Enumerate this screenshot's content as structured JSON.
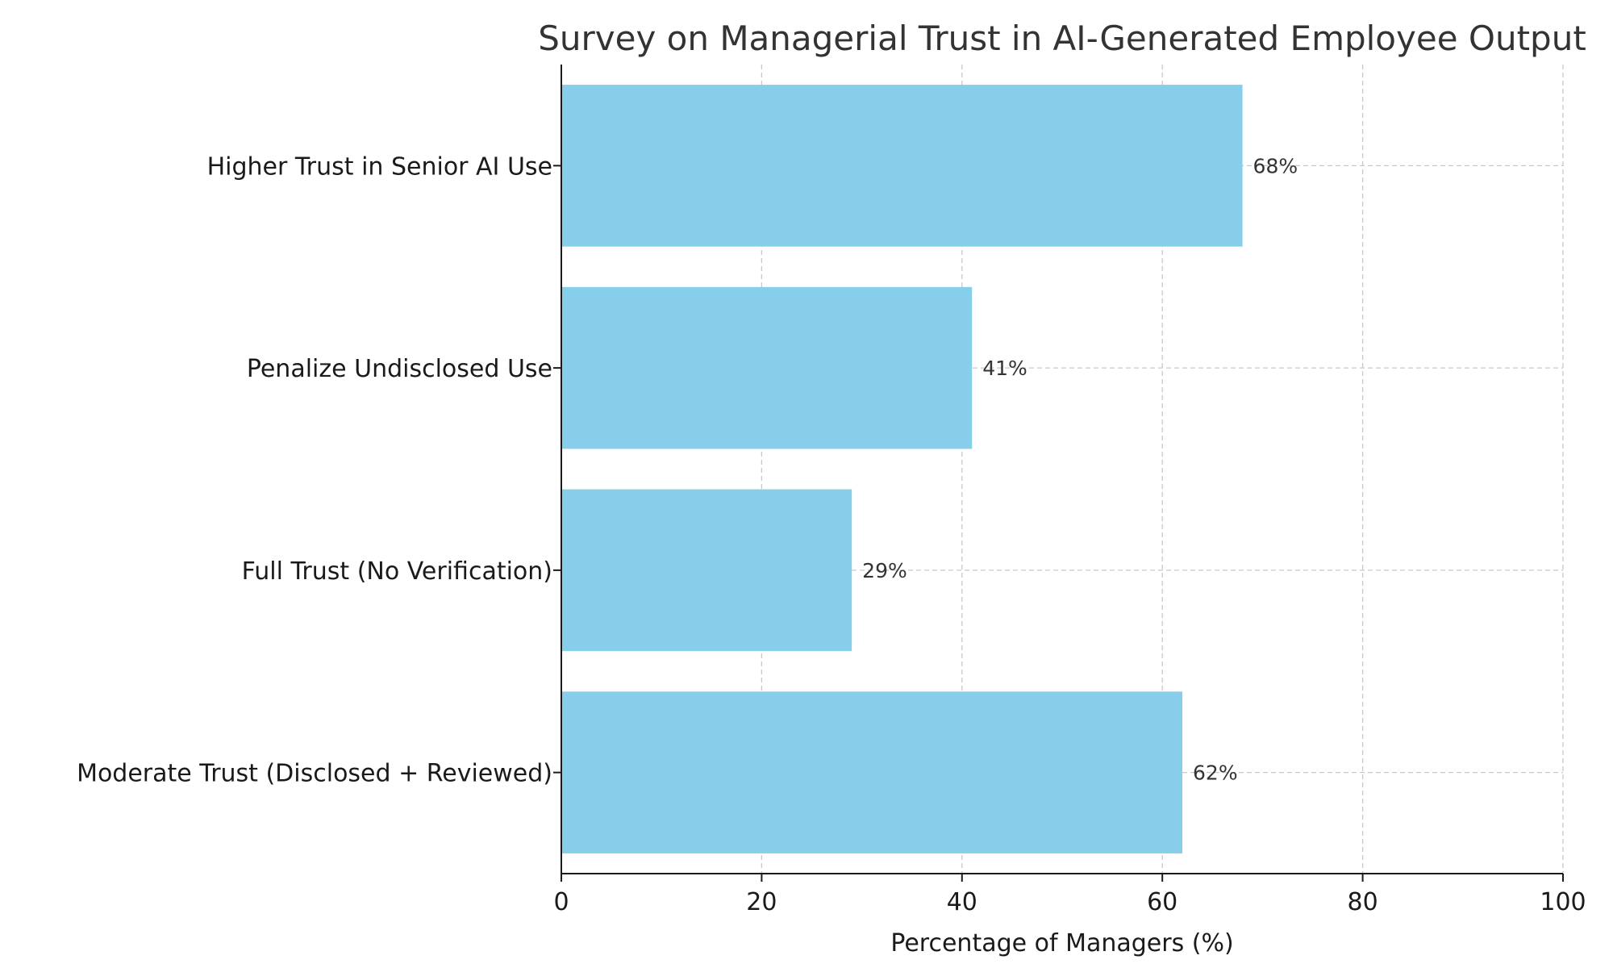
{
  "chart_data": {
    "type": "bar",
    "orientation": "horizontal",
    "title": "Survey on Managerial Trust in AI-Generated Employee Output",
    "xlabel": "Percentage of Managers (%)",
    "ylabel": "",
    "categories": [
      "Higher Trust in Senior AI Use",
      "Penalize Undisclosed Use",
      "Full Trust (No Verification)",
      "Moderate Trust (Disclosed + Reviewed)"
    ],
    "values": [
      68,
      41,
      29,
      62
    ],
    "data_labels": [
      "68%",
      "41%",
      "29%",
      "62%"
    ],
    "xlim": [
      0,
      100
    ],
    "xticks": [
      0,
      20,
      40,
      60,
      80,
      100
    ],
    "xtick_labels": [
      "0",
      "20",
      "40",
      "60",
      "80",
      "100"
    ],
    "grid": true,
    "grid_style": "dashed",
    "bar_color": "#87CEEB"
  }
}
